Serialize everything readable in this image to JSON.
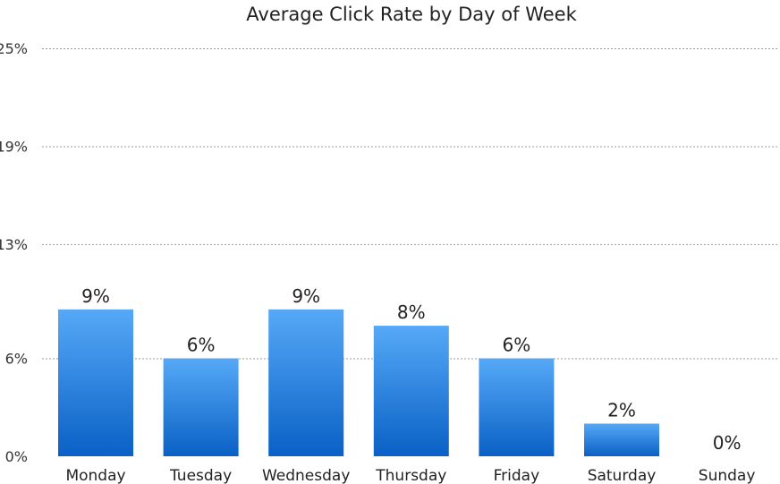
{
  "chart_data": {
    "type": "bar",
    "title": "Average Click Rate by Day of Week",
    "categories": [
      "Monday",
      "Tuesday",
      "Wednesday",
      "Thursday",
      "Friday",
      "Saturday",
      "Sunday"
    ],
    "values": [
      9,
      6,
      9,
      8,
      6,
      2,
      0
    ],
    "value_labels": [
      "9%",
      "6%",
      "9%",
      "8%",
      "6%",
      "2%",
      "0%"
    ],
    "y_ticks": [
      0,
      6,
      13,
      19,
      25
    ],
    "y_tick_labels": [
      "0%",
      "6%",
      "13%",
      "19%",
      "25%"
    ],
    "ylim": [
      0,
      25
    ],
    "grid": true,
    "legend": "none",
    "colors": {
      "bar_top": "#56a9f7",
      "bar_bottom": "#0a60c5"
    }
  }
}
